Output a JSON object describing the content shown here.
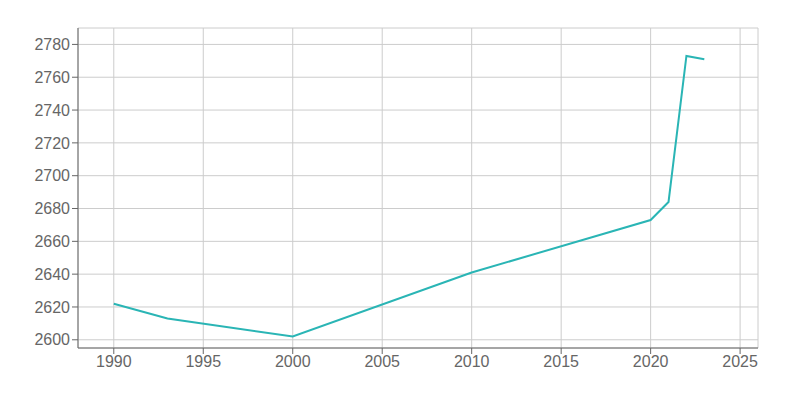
{
  "chart_data": {
    "type": "line",
    "x": [
      1990,
      1993,
      2000,
      2010,
      2020,
      2021,
      2022,
      2023
    ],
    "values": [
      2622,
      2613,
      2602,
      2641,
      2673,
      2684,
      2773,
      2771
    ],
    "color": "#2ab5b5",
    "xlim": [
      1988,
      2026
    ],
    "ylim": [
      2595,
      2790
    ],
    "xticks": [
      1990,
      1995,
      2000,
      2005,
      2010,
      2015,
      2020,
      2025
    ],
    "yticks": [
      2600,
      2620,
      2640,
      2660,
      2680,
      2700,
      2720,
      2740,
      2760,
      2780
    ],
    "grid": true
  }
}
